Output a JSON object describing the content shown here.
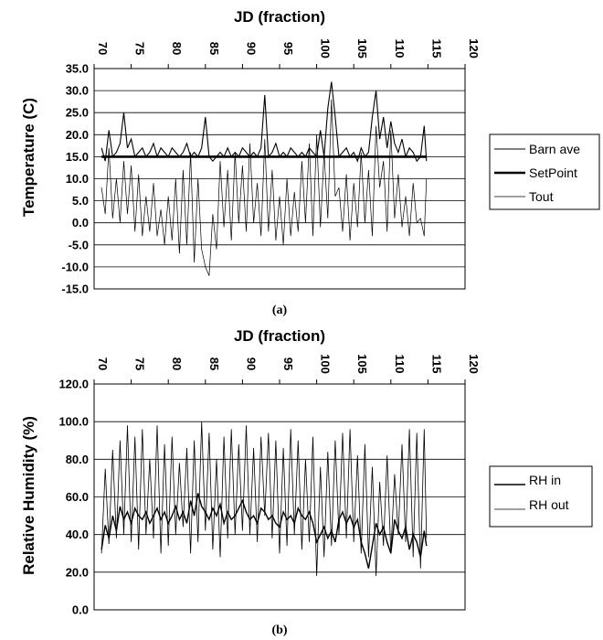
{
  "chart_data": [
    {
      "panel": "(a)",
      "type": "line",
      "title": "JD (fraction)",
      "ylabel": "Temperature (C)",
      "xlim": [
        70,
        120
      ],
      "xticks": [
        "70",
        "75",
        "80",
        "85",
        "90",
        "95",
        "100",
        "105",
        "110",
        "115",
        "120"
      ],
      "ylim": [
        -15,
        35
      ],
      "yticks": [
        "35.0",
        "30.0",
        "25.0",
        "20.0",
        "15.0",
        "10.0",
        "5.0",
        "0.0",
        "-5.0",
        "-10.0",
        "-15.0"
      ],
      "grid": "horizontal",
      "legend_position": "right",
      "series": [
        {
          "name": "Barn ave",
          "x": [
            71.0,
            71.5,
            72.0,
            72.5,
            73.0,
            73.5,
            74.0,
            74.5,
            75.0,
            75.5,
            76.0,
            76.5,
            77.0,
            77.5,
            78.0,
            78.5,
            79.0,
            79.5,
            80.0,
            80.5,
            81.0,
            81.5,
            82.0,
            82.5,
            83.0,
            83.5,
            84.0,
            84.5,
            85.0,
            85.5,
            86.0,
            86.5,
            87.0,
            87.5,
            88.0,
            88.5,
            89.0,
            89.5,
            90.0,
            90.5,
            91.0,
            91.5,
            92.0,
            92.5,
            93.0,
            93.5,
            94.0,
            94.5,
            95.0,
            95.5,
            96.0,
            96.5,
            97.0,
            97.5,
            98.0,
            98.5,
            99.0,
            99.5,
            100.0,
            100.5,
            101.0,
            101.5,
            102.0,
            102.5,
            103.0,
            103.5,
            104.0,
            104.5,
            105.0,
            105.5,
            106.0,
            106.5,
            107.0,
            107.5,
            108.0,
            108.5,
            109.0,
            109.5,
            110.0,
            110.5,
            111.0,
            111.5,
            112.0,
            112.5,
            113.0,
            113.5,
            114.0,
            114.5,
            114.8
          ],
          "y": [
            17,
            14,
            21,
            15,
            16,
            18,
            25,
            17,
            19,
            15,
            16,
            17,
            15,
            16,
            18,
            15,
            17,
            16,
            15,
            17,
            16,
            15,
            16,
            18,
            15,
            16,
            15,
            17,
            24,
            15,
            14,
            15,
            16,
            15,
            17,
            15,
            16,
            15,
            17,
            16,
            15,
            16,
            15,
            17,
            29,
            15,
            16,
            18,
            15,
            16,
            15,
            17,
            16,
            15,
            16,
            15,
            17,
            16,
            15,
            21,
            15,
            26,
            32,
            24,
            15,
            16,
            17,
            15,
            16,
            14,
            17,
            15,
            16,
            24,
            30,
            19,
            24,
            17,
            23,
            18,
            16,
            19,
            15,
            17,
            16,
            14,
            15,
            22,
            14
          ]
        },
        {
          "name": "SetPoint",
          "x": [
            71,
            114.8
          ],
          "y": [
            15,
            15
          ]
        },
        {
          "name": "Tout",
          "x": [
            71.0,
            71.5,
            72.0,
            72.5,
            73.0,
            73.5,
            74.0,
            74.5,
            75.0,
            75.5,
            76.0,
            76.5,
            77.0,
            77.5,
            78.0,
            78.5,
            79.0,
            79.5,
            80.0,
            80.5,
            81.0,
            81.5,
            82.0,
            82.5,
            83.0,
            83.5,
            84.0,
            84.5,
            85.0,
            85.5,
            86.0,
            86.5,
            87.0,
            87.5,
            88.0,
            88.5,
            89.0,
            89.5,
            90.0,
            90.5,
            91.0,
            91.5,
            92.0,
            92.5,
            93.0,
            93.5,
            94.0,
            94.5,
            95.0,
            95.5,
            96.0,
            96.5,
            97.0,
            97.5,
            98.0,
            98.5,
            99.0,
            99.5,
            100.0,
            100.5,
            101.0,
            101.5,
            102.0,
            102.5,
            103.0,
            103.5,
            104.0,
            104.5,
            105.0,
            105.5,
            106.0,
            106.5,
            107.0,
            107.5,
            108.0,
            108.5,
            109.0,
            109.5,
            110.0,
            110.5,
            111.0,
            111.5,
            112.0,
            112.5,
            113.0,
            113.5,
            114.0,
            114.5,
            114.8
          ],
          "y": [
            8,
            2,
            17,
            1,
            10,
            0,
            14,
            2,
            13,
            -2,
            11,
            -3,
            6,
            -2,
            9,
            -3,
            3,
            -5,
            6,
            -4,
            10,
            -7,
            12,
            -5,
            16,
            -9,
            10,
            -6,
            -10,
            -12,
            2,
            -6,
            14,
            -1,
            12,
            -4,
            16,
            0,
            13,
            -2,
            18,
            0,
            9,
            -3,
            19,
            -2,
            12,
            -4,
            6,
            -5,
            10,
            -3,
            7,
            -2,
            14,
            0,
            18,
            -3,
            20,
            -1,
            16,
            1,
            28,
            6,
            8,
            -2,
            11,
            -4,
            9,
            -1,
            16,
            0,
            12,
            -3,
            22,
            8,
            14,
            -2,
            21,
            1,
            11,
            -1,
            6,
            -3,
            9,
            0,
            1,
            -3,
            10
          ]
        }
      ]
    },
    {
      "panel": "(b)",
      "type": "line",
      "title": "JD (fraction)",
      "ylabel": "Relative Humidity (%)",
      "xlim": [
        70,
        120
      ],
      "xticks": [
        "70",
        "75",
        "80",
        "85",
        "90",
        "95",
        "100",
        "105",
        "110",
        "115",
        "120"
      ],
      "ylim": [
        0,
        120
      ],
      "yticks": [
        "120.0",
        "100.0",
        "80.0",
        "60.0",
        "40.0",
        "20.0",
        "0.0"
      ],
      "grid": "horizontal",
      "legend_position": "right",
      "series": [
        {
          "name": "RH in",
          "x": [
            71.0,
            71.5,
            72.0,
            72.5,
            73.0,
            73.5,
            74.0,
            74.5,
            75.0,
            75.5,
            76.0,
            76.5,
            77.0,
            77.5,
            78.0,
            78.5,
            79.0,
            79.5,
            80.0,
            80.5,
            81.0,
            81.5,
            82.0,
            82.5,
            83.0,
            83.5,
            84.0,
            84.5,
            85.0,
            85.5,
            86.0,
            86.5,
            87.0,
            87.5,
            88.0,
            88.5,
            89.0,
            89.5,
            90.0,
            90.5,
            91.0,
            91.5,
            92.0,
            92.5,
            93.0,
            93.5,
            94.0,
            94.5,
            95.0,
            95.5,
            96.0,
            96.5,
            97.0,
            97.5,
            98.0,
            98.5,
            99.0,
            99.5,
            100.0,
            100.5,
            101.0,
            101.5,
            102.0,
            102.5,
            103.0,
            103.5,
            104.0,
            104.5,
            105.0,
            105.5,
            106.0,
            106.5,
            107.0,
            107.5,
            108.0,
            108.5,
            109.0,
            109.5,
            110.0,
            110.5,
            111.0,
            111.5,
            112.0,
            112.5,
            113.0,
            113.5,
            114.0,
            114.5,
            114.8
          ],
          "y": [
            32,
            45,
            38,
            50,
            42,
            55,
            48,
            52,
            46,
            54,
            50,
            48,
            52,
            46,
            50,
            54,
            48,
            52,
            46,
            50,
            55,
            48,
            52,
            46,
            58,
            50,
            62,
            55,
            52,
            48,
            54,
            50,
            56,
            46,
            52,
            48,
            50,
            54,
            58,
            52,
            48,
            50,
            46,
            54,
            52,
            48,
            50,
            46,
            44,
            52,
            48,
            50,
            46,
            54,
            50,
            48,
            52,
            46,
            36,
            40,
            44,
            38,
            42,
            36,
            48,
            52,
            46,
            50,
            44,
            48,
            36,
            30,
            22,
            34,
            46,
            40,
            44,
            36,
            30,
            48,
            42,
            38,
            44,
            32,
            40,
            36,
            28,
            42,
            34
          ]
        },
        {
          "name": "RH out",
          "x": [
            71.0,
            71.5,
            72.0,
            72.5,
            73.0,
            73.5,
            74.0,
            74.5,
            75.0,
            75.5,
            76.0,
            76.5,
            77.0,
            77.5,
            78.0,
            78.5,
            79.0,
            79.5,
            80.0,
            80.5,
            81.0,
            81.5,
            82.0,
            82.5,
            83.0,
            83.5,
            84.0,
            84.5,
            85.0,
            85.5,
            86.0,
            86.5,
            87.0,
            87.5,
            88.0,
            88.5,
            89.0,
            89.5,
            90.0,
            90.5,
            91.0,
            91.5,
            92.0,
            92.5,
            93.0,
            93.5,
            94.0,
            94.5,
            95.0,
            95.5,
            96.0,
            96.5,
            97.0,
            97.5,
            98.0,
            98.5,
            99.0,
            99.5,
            100.0,
            100.5,
            101.0,
            101.5,
            102.0,
            102.5,
            103.0,
            103.5,
            104.0,
            104.5,
            105.0,
            105.5,
            106.0,
            106.5,
            107.0,
            107.5,
            108.0,
            108.5,
            109.0,
            109.5,
            110.0,
            110.5,
            111.0,
            111.5,
            112.0,
            112.5,
            113.0,
            113.5,
            114.0,
            114.5,
            114.8
          ],
          "y": [
            30,
            75,
            35,
            85,
            38,
            90,
            40,
            98,
            36,
            92,
            32,
            96,
            40,
            80,
            38,
            98,
            30,
            88,
            34,
            92,
            40,
            78,
            44,
            86,
            30,
            90,
            36,
            100,
            42,
            94,
            32,
            80,
            28,
            92,
            38,
            96,
            40,
            88,
            42,
            98,
            40,
            86,
            36,
            92,
            50,
            94,
            38,
            90,
            30,
            86,
            34,
            96,
            40,
            90,
            32,
            80,
            36,
            92,
            18,
            76,
            28,
            84,
            34,
            90,
            40,
            94,
            38,
            96,
            36,
            82,
            30,
            88,
            28,
            76,
            18,
            68,
            34,
            82,
            30,
            72,
            40,
            88,
            36,
            96,
            28,
            94,
            22,
            96,
            38
          ]
        }
      ]
    }
  ]
}
